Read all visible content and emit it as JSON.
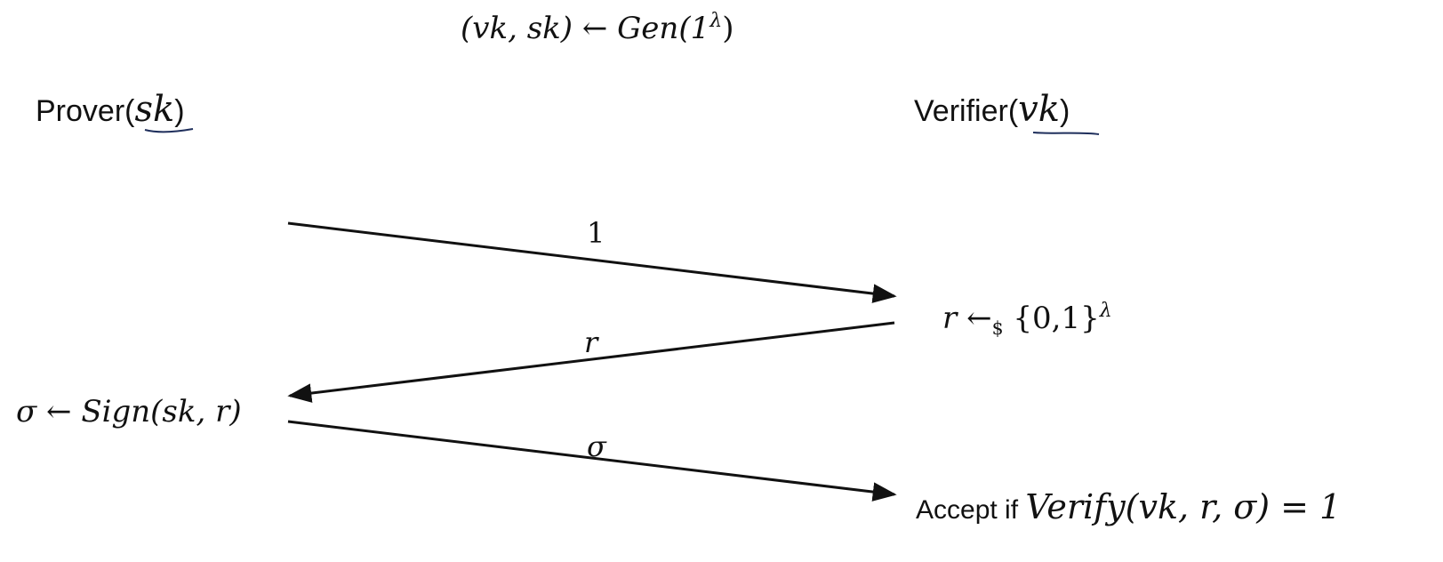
{
  "setup": {
    "lhs": "(vk, sk)",
    "arrow": "←",
    "gen": "Gen(1",
    "lambda": "λ",
    "close": ")"
  },
  "parties": {
    "prover": {
      "name": "Prover(",
      "arg": "sk",
      "close": ")"
    },
    "verifier": {
      "name": "Verifier(",
      "arg": "vk",
      "close": ")"
    }
  },
  "messages": [
    {
      "label": "1"
    },
    {
      "label": "r"
    },
    {
      "label": "σ"
    }
  ],
  "verifier_step": {
    "var": "r",
    "arrow": "←",
    "sub": "$",
    "set": "{0,1}",
    "exp": "λ"
  },
  "prover_step": {
    "text": "σ ← Sign(sk, r)"
  },
  "final": {
    "prefix": "Accept if ",
    "expr": "Verify(vk, r, σ) = 1"
  },
  "colors": {
    "ink": "#111111",
    "underline": "#1f2f5c"
  }
}
